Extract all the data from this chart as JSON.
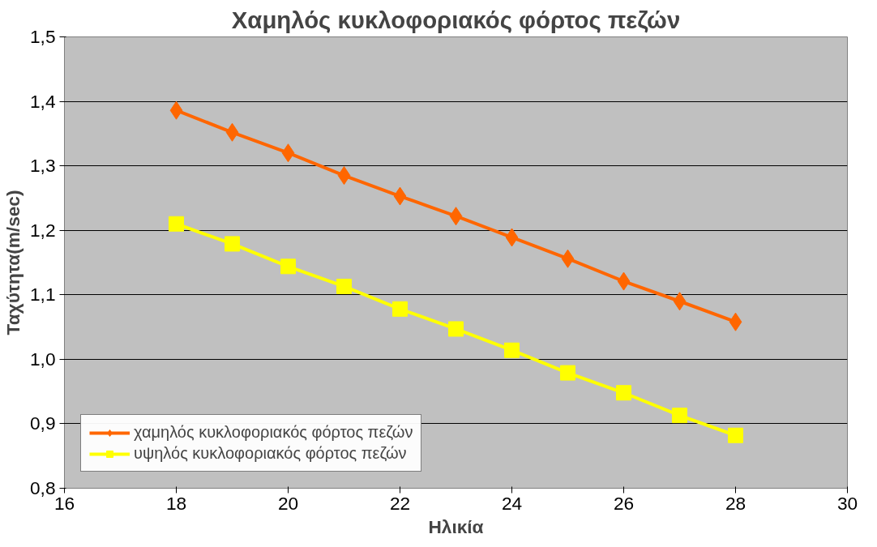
{
  "chart_data": {
    "type": "line",
    "title": "Χαμηλός κυκλοφοριακός φόρτος πεζών",
    "xlabel": "Ηλικία",
    "ylabel": "Ταχύτητα(m/sec)",
    "x": [
      18,
      19,
      20,
      21,
      22,
      23,
      24,
      25,
      26,
      27,
      28
    ],
    "series": [
      {
        "name": "χαμηλός κυκλοφοριακός φόρτος πεζών",
        "color": "#ff6600",
        "marker": "diamond",
        "values": [
          1.386,
          1.352,
          1.32,
          1.285,
          1.253,
          1.222,
          1.189,
          1.156,
          1.121,
          1.09,
          1.058
        ]
      },
      {
        "name": "υψηλός κυκλοφοριακός φόρτος πεζών",
        "color": "#ffff00",
        "marker": "square",
        "values": [
          1.21,
          1.179,
          1.144,
          1.113,
          1.078,
          1.047,
          1.014,
          0.979,
          0.948,
          0.913,
          0.882
        ]
      }
    ],
    "xlim": [
      16,
      30
    ],
    "xticks": [
      16,
      18,
      20,
      22,
      24,
      26,
      28,
      30
    ],
    "ylim": [
      0.8,
      1.5
    ],
    "yticks": [
      {
        "value": 0.8,
        "label": "0,8"
      },
      {
        "value": 0.9,
        "label": "0,9"
      },
      {
        "value": 1.0,
        "label": "1,0"
      },
      {
        "value": 1.1,
        "label": "1,1"
      },
      {
        "value": 1.2,
        "label": "1,2"
      },
      {
        "value": 1.3,
        "label": "1,3"
      },
      {
        "value": 1.4,
        "label": "1,4"
      },
      {
        "value": 1.5,
        "label": "1,5"
      }
    ],
    "grid": "y",
    "legend": "bottom left",
    "line_style": "solid"
  }
}
